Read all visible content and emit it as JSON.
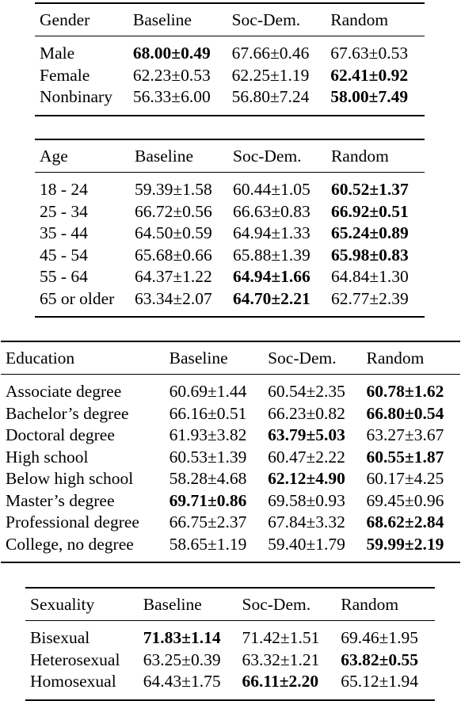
{
  "tables": [
    {
      "id": "gender",
      "headers": [
        "Gender",
        "Baseline",
        "Soc-Dem.",
        "Random"
      ],
      "rows": [
        {
          "label": "Male",
          "values": [
            "68.00±0.49",
            "67.66±0.46",
            "67.63±0.53"
          ],
          "bold": [
            true,
            false,
            false
          ]
        },
        {
          "label": "Female",
          "values": [
            "62.23±0.53",
            "62.25±1.19",
            "62.41±0.92"
          ],
          "bold": [
            false,
            false,
            true
          ]
        },
        {
          "label": "Nonbinary",
          "values": [
            "56.33±6.00",
            "56.80±7.24",
            "58.00±7.49"
          ],
          "bold": [
            false,
            false,
            true
          ]
        }
      ]
    },
    {
      "id": "age",
      "headers": [
        "Age",
        "Baseline",
        "Soc-Dem.",
        "Random"
      ],
      "rows": [
        {
          "label": "18 - 24",
          "values": [
            "59.39±1.58",
            "60.44±1.05",
            "60.52±1.37"
          ],
          "bold": [
            false,
            false,
            true
          ]
        },
        {
          "label": "25 - 34",
          "values": [
            "66.72±0.56",
            "66.63±0.83",
            "66.92±0.51"
          ],
          "bold": [
            false,
            false,
            true
          ]
        },
        {
          "label": "35 - 44",
          "values": [
            "64.50±0.59",
            "64.94±1.33",
            "65.24±0.89"
          ],
          "bold": [
            false,
            false,
            true
          ]
        },
        {
          "label": "45 - 54",
          "values": [
            "65.68±0.66",
            "65.88±1.39",
            "65.98±0.83"
          ],
          "bold": [
            false,
            false,
            true
          ]
        },
        {
          "label": "55 - 64",
          "values": [
            "64.37±1.22",
            "64.94±1.66",
            "64.84±1.30"
          ],
          "bold": [
            false,
            true,
            false
          ]
        },
        {
          "label": "65 or older",
          "values": [
            "63.34±2.07",
            "64.70±2.21",
            "62.77±2.39"
          ],
          "bold": [
            false,
            true,
            false
          ]
        }
      ]
    },
    {
      "id": "edu",
      "headers": [
        "Education",
        "Baseline",
        "Soc-Dem.",
        "Random"
      ],
      "rows": [
        {
          "label": "Associate degree",
          "values": [
            "60.69±1.44",
            "60.54±2.35",
            "60.78±1.62"
          ],
          "bold": [
            false,
            false,
            true
          ]
        },
        {
          "label": "Bachelor’s degree",
          "values": [
            "66.16±0.51",
            "66.23±0.82",
            "66.80±0.54"
          ],
          "bold": [
            false,
            false,
            true
          ]
        },
        {
          "label": "Doctoral degree",
          "values": [
            "61.93±3.82",
            "63.79±5.03",
            "63.27±3.67"
          ],
          "bold": [
            false,
            true,
            false
          ]
        },
        {
          "label": "High school",
          "values": [
            "60.53±1.39",
            "60.47±2.22",
            "60.55±1.87"
          ],
          "bold": [
            false,
            false,
            true
          ]
        },
        {
          "label": "Below high school",
          "values": [
            "58.28±4.68",
            "62.12±4.90",
            "60.17±4.25"
          ],
          "bold": [
            false,
            true,
            false
          ]
        },
        {
          "label": "Master’s degree",
          "values": [
            "69.71±0.86",
            "69.58±0.93",
            "69.45±0.96"
          ],
          "bold": [
            true,
            false,
            false
          ]
        },
        {
          "label": "Professional degree",
          "values": [
            "66.75±2.37",
            "67.84±3.32",
            "68.62±2.84"
          ],
          "bold": [
            false,
            false,
            true
          ]
        },
        {
          "label": "College, no degree",
          "values": [
            "58.65±1.19",
            "59.40±1.79",
            "59.99±2.19"
          ],
          "bold": [
            false,
            false,
            true
          ]
        }
      ]
    },
    {
      "id": "sex",
      "headers": [
        "Sexuality",
        "Baseline",
        "Soc-Dem.",
        "Random"
      ],
      "rows": [
        {
          "label": "Bisexual",
          "values": [
            "71.83±1.14",
            "71.42±1.51",
            "69.46±1.95"
          ],
          "bold": [
            true,
            false,
            false
          ]
        },
        {
          "label": "Heterosexual",
          "values": [
            "63.25±0.39",
            "63.32±1.21",
            "63.82±0.55"
          ],
          "bold": [
            false,
            false,
            true
          ]
        },
        {
          "label": "Homosexual",
          "values": [
            "64.43±1.75",
            "66.11±2.20",
            "65.12±1.94"
          ],
          "bold": [
            false,
            true,
            false
          ]
        }
      ]
    }
  ]
}
